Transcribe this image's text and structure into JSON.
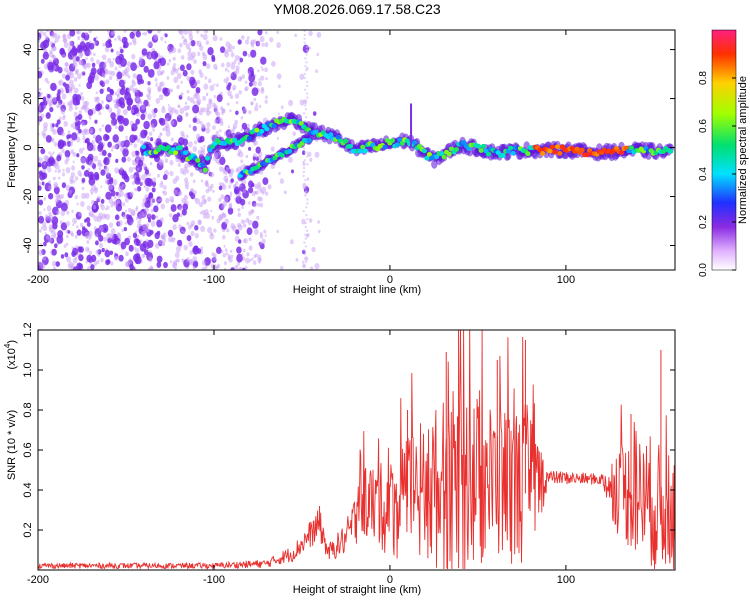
{
  "title": "YM08.2026.069.17.58.C23",
  "colors": {
    "low": "#8a2be2",
    "signal": "#e8302e",
    "bg": "#ffffff"
  },
  "chart_data": [
    {
      "type": "heatmap",
      "xlabel": "Height of straight line (km)",
      "ylabel": "Frequency (Hz)",
      "xlim": [
        -200,
        162
      ],
      "ylim": [
        -50,
        48
      ],
      "xticks": [
        -200,
        -100,
        0,
        100
      ],
      "yticks": [
        40,
        20,
        0,
        -20,
        -40
      ],
      "colorbar": {
        "label": "Normalized spectral amplitude",
        "range": [
          0,
          1
        ],
        "ticks": [
          0.0,
          0.2,
          0.4,
          0.6,
          0.8
        ]
      },
      "ridge": [
        {
          "x": -140,
          "y": -1
        },
        {
          "x": -120,
          "y": -1
        },
        {
          "x": -105,
          "y": -8
        },
        {
          "x": -100,
          "y": 2
        },
        {
          "x": -90,
          "y": 2
        },
        {
          "x": -70,
          "y": 8
        },
        {
          "x": -55,
          "y": 12
        },
        {
          "x": -45,
          "y": 7
        },
        {
          "x": -30,
          "y": 4
        },
        {
          "x": -20,
          "y": -1
        },
        {
          "x": -5,
          "y": 1
        },
        {
          "x": 10,
          "y": 3
        },
        {
          "x": 25,
          "y": -5
        },
        {
          "x": 40,
          "y": 1
        },
        {
          "x": 60,
          "y": -2
        },
        {
          "x": 80,
          "y": -1
        },
        {
          "x": 100,
          "y": -1
        },
        {
          "x": 120,
          "y": -2
        },
        {
          "x": 140,
          "y": -1
        },
        {
          "x": 160,
          "y": -2
        }
      ],
      "lower_branch": [
        {
          "x": -85,
          "y": -11
        },
        {
          "x": -75,
          "y": -8
        },
        {
          "x": -65,
          "y": -4
        },
        {
          "x": -55,
          "y": 0
        },
        {
          "x": -45,
          "y": 4
        }
      ]
    },
    {
      "type": "line",
      "xlabel": "Height of straight line (km)",
      "ylabel": "SNR (10 * v/v)",
      "y_multiplier": "(x10",
      "y_multiplier_exp": "4",
      "xlim": [
        -200,
        162
      ],
      "ylim": [
        0,
        1.2
      ],
      "xticks": [
        -200,
        -100,
        0,
        100
      ],
      "yticks": [
        0.2,
        0.4,
        0.6,
        0.8,
        1.0,
        1.2
      ],
      "envelope": [
        {
          "x": -200,
          "base": 0.02,
          "amp": 0.02
        },
        {
          "x": -140,
          "base": 0.02,
          "amp": 0.02
        },
        {
          "x": -100,
          "base": 0.02,
          "amp": 0.02
        },
        {
          "x": -70,
          "base": 0.03,
          "amp": 0.03
        },
        {
          "x": -55,
          "base": 0.08,
          "amp": 0.06
        },
        {
          "x": -40,
          "base": 0.22,
          "amp": 0.12
        },
        {
          "x": -35,
          "base": 0.08,
          "amp": 0.06
        },
        {
          "x": -25,
          "base": 0.15,
          "amp": 0.12
        },
        {
          "x": -15,
          "base": 0.32,
          "amp": 0.25
        },
        {
          "x": 0,
          "base": 0.28,
          "amp": 0.35
        },
        {
          "x": 20,
          "base": 0.35,
          "amp": 0.55
        },
        {
          "x": 40,
          "base": 0.4,
          "amp": 0.7
        },
        {
          "x": 60,
          "base": 0.4,
          "amp": 0.55
        },
        {
          "x": 80,
          "base": 0.38,
          "amp": 0.6
        },
        {
          "x": 90,
          "base": 0.46,
          "amp": 0.05
        },
        {
          "x": 120,
          "base": 0.45,
          "amp": 0.04
        },
        {
          "x": 130,
          "base": 0.38,
          "amp": 0.35
        },
        {
          "x": 150,
          "base": 0.3,
          "amp": 0.5
        },
        {
          "x": 162,
          "base": 0.2,
          "amp": 0.35
        }
      ],
      "peaks": [
        {
          "x": 39,
          "y": 1.2
        },
        {
          "x": 32,
          "y": 1.09
        },
        {
          "x": 77,
          "y": 1.15
        },
        {
          "x": 61,
          "y": 1.05
        },
        {
          "x": 154,
          "y": 1.1
        },
        {
          "x": 137,
          "y": 0.78
        },
        {
          "x": 10,
          "y": 0.8
        },
        {
          "x": -40,
          "y": 0.32
        }
      ]
    }
  ]
}
